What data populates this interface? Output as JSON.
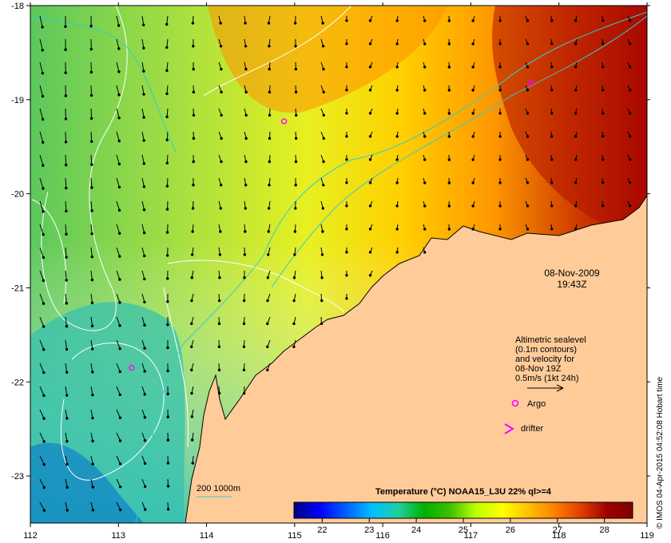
{
  "map": {
    "lon_range": [
      112,
      119
    ],
    "lat_range": [
      -23.5,
      -18
    ],
    "lon_ticks": [
      "112",
      "113",
      "114",
      "115",
      "116",
      "117",
      "118",
      "119"
    ],
    "lat_ticks": [
      "-18",
      "-19",
      "-20",
      "-21",
      "-22",
      "-23"
    ],
    "date_line1": "08-Nov-2009",
    "date_line2": "19:43Z",
    "legend_lines": [
      "Altimetric sealevel",
      "(0.1m contours)",
      "and velocity for",
      "08-Nov 19Z",
      "0.5m/s (1kt 24h)"
    ],
    "argo_label": "Argo",
    "drifter_label": "drifter",
    "bathy_label": "200  1000m",
    "credit": "© IMOS 04-Apr-2015 04:52:08 Hobart time",
    "land_color": "#ffcc99",
    "argo_color": "#ff00ff",
    "bathy_color": "#33cccc"
  },
  "colorbar": {
    "title": "Temperature (°C) NOAA15_L3U 22% ql>=4",
    "ticks": [
      "22",
      "23",
      "24",
      "25",
      "26",
      "27",
      "28"
    ],
    "range": [
      21.4,
      28.6
    ],
    "stops": [
      "#00007f",
      "#0000ff",
      "#0060ff",
      "#00c0ff",
      "#20d0a0",
      "#00b000",
      "#40c000",
      "#c0ff00",
      "#ffff00",
      "#ffc000",
      "#ff8000",
      "#e04000",
      "#a00000",
      "#800000"
    ]
  },
  "argo_floats": [
    {
      "lon": 114.88,
      "lat": -19.23
    },
    {
      "lon": 113.15,
      "lat": -21.85
    },
    {
      "lon": 117.68,
      "lat": -18.82
    }
  ]
}
